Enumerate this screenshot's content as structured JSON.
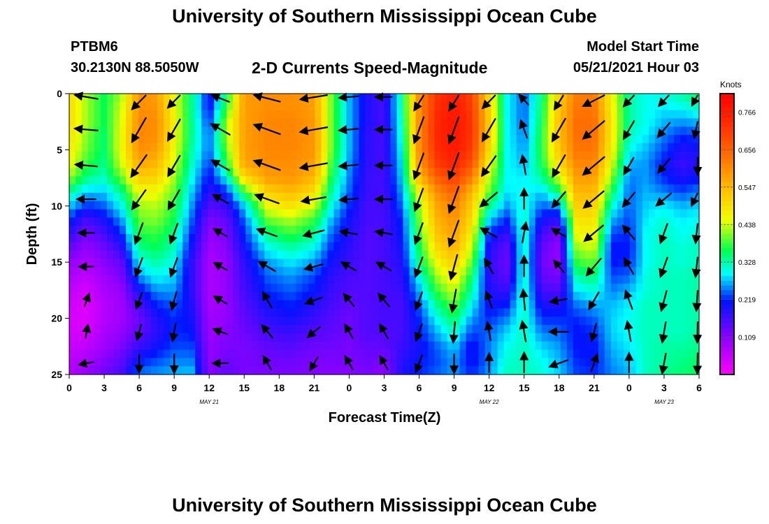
{
  "header": {
    "title": "University of Southern Mississippi Ocean Cube",
    "station_id": "PTBM6",
    "station_coords": "30.2130N  88.5050W",
    "plot_title": "2-D Currents Speed-Magnitude",
    "model_start_label": "Model Start Time",
    "model_start_value": "05/21/2021 Hour 03"
  },
  "footer": {
    "title": "University of Southern Mississippi Ocean Cube"
  },
  "chart_data": {
    "type": "heatmap",
    "xlabel": "Forecast Time(Z)",
    "ylabel": "Depth (ft)",
    "x_hours": [
      0,
      54
    ],
    "x_tick_step_hours": 3,
    "x_tick_labels": [
      "0",
      "3",
      "6",
      "9",
      "12",
      "15",
      "18",
      "21",
      "0",
      "3",
      "6",
      "9",
      "12",
      "15",
      "18",
      "21",
      "0",
      "3",
      "6"
    ],
    "date_labels": [
      {
        "text": "MAY 21",
        "hour": 12
      },
      {
        "text": "MAY 22",
        "hour": 36
      },
      {
        "text": "MAY 23",
        "hour": 51
      }
    ],
    "y_ticks": [
      0,
      5,
      10,
      15,
      20,
      25
    ],
    "ylim": [
      0,
      25
    ],
    "y_inverted": true,
    "colorbar": {
      "unit": "Knots",
      "min": 0.0,
      "max": 0.82,
      "tick_values": [
        0.766,
        0.656,
        0.547,
        0.438,
        0.328,
        0.219,
        0.109
      ],
      "tick_labels": [
        "0.766",
        "0.656",
        "0.547",
        "0.438",
        "0.328",
        "0.219",
        "0.109"
      ]
    },
    "depth_levels_ft": [
      0,
      1.2,
      2.5,
      3.7,
      5,
      6.2,
      7.5,
      8.7,
      10,
      11.2,
      12.5,
      13.7,
      15,
      16.2,
      17.5,
      18.7,
      20,
      21.2,
      22.5,
      23.7,
      25
    ],
    "vector_depths_ft": [
      0.3,
      3.2,
      6.4,
      9.4,
      12.4,
      15.4,
      18.4,
      21.2,
      24
    ],
    "speed_profiles": [
      {
        "hour": 0,
        "values": [
          0.5,
          0.5,
          0.5,
          0.49,
          0.48,
          0.46,
          0.42,
          0.34,
          0.28,
          0.22,
          0.18,
          0.14,
          0.1,
          0.08,
          0.06,
          0.05,
          0.04,
          0.04,
          0.05,
          0.06,
          0.07
        ]
      },
      {
        "hour": 1.5,
        "values": [
          0.42,
          0.42,
          0.42,
          0.41,
          0.4,
          0.38,
          0.34,
          0.28,
          0.22,
          0.16,
          0.12,
          0.1,
          0.08,
          0.06,
          0.04,
          0.03,
          0.03,
          0.04,
          0.06,
          0.08,
          0.1
        ]
      },
      {
        "hour": 3,
        "values": [
          0.36,
          0.36,
          0.36,
          0.35,
          0.35,
          0.34,
          0.32,
          0.28,
          0.24,
          0.2,
          0.16,
          0.13,
          0.11,
          0.09,
          0.08,
          0.07,
          0.07,
          0.08,
          0.09,
          0.11,
          0.13
        ]
      },
      {
        "hour": 4.5,
        "values": [
          0.42,
          0.44,
          0.45,
          0.46,
          0.46,
          0.44,
          0.4,
          0.34,
          0.3,
          0.26,
          0.22,
          0.18,
          0.14,
          0.12,
          0.1,
          0.09,
          0.09,
          0.1,
          0.12,
          0.14,
          0.16
        ]
      },
      {
        "hour": 6,
        "values": [
          0.6,
          0.6,
          0.61,
          0.61,
          0.6,
          0.57,
          0.52,
          0.46,
          0.42,
          0.4,
          0.37,
          0.34,
          0.3,
          0.26,
          0.2,
          0.16,
          0.13,
          0.14,
          0.17,
          0.21,
          0.25
        ]
      },
      {
        "hour": 7.5,
        "values": [
          0.58,
          0.59,
          0.6,
          0.6,
          0.58,
          0.55,
          0.51,
          0.46,
          0.43,
          0.41,
          0.38,
          0.36,
          0.33,
          0.3,
          0.26,
          0.22,
          0.19,
          0.18,
          0.2,
          0.23,
          0.26
        ]
      },
      {
        "hour": 9,
        "values": [
          0.46,
          0.46,
          0.47,
          0.47,
          0.46,
          0.44,
          0.42,
          0.4,
          0.38,
          0.36,
          0.34,
          0.32,
          0.3,
          0.28,
          0.26,
          0.24,
          0.22,
          0.22,
          0.23,
          0.25,
          0.27
        ]
      },
      {
        "hour": 10.5,
        "values": [
          0.34,
          0.34,
          0.34,
          0.34,
          0.33,
          0.32,
          0.3,
          0.28,
          0.26,
          0.24,
          0.22,
          0.2,
          0.18,
          0.18,
          0.18,
          0.19,
          0.2,
          0.21,
          0.23,
          0.25,
          0.28
        ]
      },
      {
        "hour": 12,
        "values": [
          0.2,
          0.2,
          0.22,
          0.24,
          0.24,
          0.22,
          0.2,
          0.18,
          0.15,
          0.12,
          0.1,
          0.09,
          0.08,
          0.08,
          0.08,
          0.08,
          0.09,
          0.09,
          0.1,
          0.1,
          0.11
        ]
      },
      {
        "hour": 13.5,
        "values": [
          0.35,
          0.38,
          0.42,
          0.42,
          0.4,
          0.37,
          0.3,
          0.22,
          0.17,
          0.14,
          0.12,
          0.11,
          0.1,
          0.1,
          0.1,
          0.1,
          0.1,
          0.11,
          0.12,
          0.13,
          0.14
        ]
      },
      {
        "hour": 15,
        "values": [
          0.58,
          0.58,
          0.58,
          0.58,
          0.58,
          0.57,
          0.5,
          0.38,
          0.28,
          0.24,
          0.22,
          0.2,
          0.18,
          0.17,
          0.16,
          0.15,
          0.14,
          0.13,
          0.12,
          0.12,
          0.12
        ]
      },
      {
        "hour": 17,
        "values": [
          0.6,
          0.6,
          0.61,
          0.61,
          0.61,
          0.6,
          0.58,
          0.52,
          0.46,
          0.4,
          0.34,
          0.3,
          0.26,
          0.24,
          0.22,
          0.2,
          0.18,
          0.16,
          0.14,
          0.13,
          0.12
        ]
      },
      {
        "hour": 19,
        "values": [
          0.6,
          0.6,
          0.61,
          0.61,
          0.61,
          0.6,
          0.59,
          0.55,
          0.49,
          0.43,
          0.38,
          0.33,
          0.29,
          0.26,
          0.24,
          0.22,
          0.2,
          0.17,
          0.15,
          0.13,
          0.12
        ]
      },
      {
        "hour": 21,
        "values": [
          0.58,
          0.58,
          0.59,
          0.59,
          0.59,
          0.58,
          0.55,
          0.5,
          0.44,
          0.38,
          0.34,
          0.3,
          0.26,
          0.23,
          0.21,
          0.19,
          0.17,
          0.15,
          0.13,
          0.12,
          0.11
        ]
      },
      {
        "hour": 22.5,
        "values": [
          0.4,
          0.4,
          0.4,
          0.4,
          0.4,
          0.38,
          0.36,
          0.33,
          0.3,
          0.27,
          0.24,
          0.22,
          0.2,
          0.18,
          0.17,
          0.16,
          0.15,
          0.14,
          0.13,
          0.12,
          0.11
        ]
      },
      {
        "hour": 24,
        "values": [
          0.27,
          0.27,
          0.27,
          0.27,
          0.27,
          0.26,
          0.25,
          0.24,
          0.22,
          0.2,
          0.19,
          0.18,
          0.17,
          0.16,
          0.15,
          0.14,
          0.13,
          0.13,
          0.12,
          0.12,
          0.11
        ]
      },
      {
        "hour": 25.5,
        "values": [
          0.19,
          0.19,
          0.19,
          0.18,
          0.18,
          0.18,
          0.17,
          0.17,
          0.16,
          0.16,
          0.15,
          0.15,
          0.15,
          0.15,
          0.15,
          0.15,
          0.15,
          0.15,
          0.14,
          0.13,
          0.12
        ]
      },
      {
        "hour": 27,
        "values": [
          0.16,
          0.16,
          0.16,
          0.16,
          0.16,
          0.16,
          0.16,
          0.16,
          0.16,
          0.16,
          0.16,
          0.16,
          0.16,
          0.16,
          0.16,
          0.16,
          0.16,
          0.15,
          0.14,
          0.12,
          0.1
        ]
      },
      {
        "hour": 28.5,
        "values": [
          0.33,
          0.33,
          0.32,
          0.31,
          0.3,
          0.29,
          0.28,
          0.26,
          0.24,
          0.22,
          0.21,
          0.2,
          0.19,
          0.18,
          0.17,
          0.16,
          0.16,
          0.16,
          0.17,
          0.18,
          0.19
        ]
      },
      {
        "hour": 30,
        "values": [
          0.6,
          0.6,
          0.6,
          0.6,
          0.6,
          0.58,
          0.54,
          0.47,
          0.42,
          0.4,
          0.38,
          0.36,
          0.34,
          0.3,
          0.27,
          0.24,
          0.22,
          0.21,
          0.2,
          0.21,
          0.22
        ]
      },
      {
        "hour": 31.5,
        "values": [
          0.72,
          0.73,
          0.74,
          0.74,
          0.73,
          0.71,
          0.66,
          0.6,
          0.57,
          0.55,
          0.53,
          0.5,
          0.46,
          0.42,
          0.38,
          0.34,
          0.3,
          0.27,
          0.24,
          0.23,
          0.24
        ]
      },
      {
        "hour": 33,
        "values": [
          0.76,
          0.77,
          0.78,
          0.78,
          0.77,
          0.75,
          0.71,
          0.66,
          0.62,
          0.6,
          0.58,
          0.56,
          0.52,
          0.48,
          0.44,
          0.4,
          0.36,
          0.32,
          0.28,
          0.26,
          0.26
        ]
      },
      {
        "hour": 34.5,
        "values": [
          0.7,
          0.71,
          0.72,
          0.72,
          0.71,
          0.68,
          0.62,
          0.55,
          0.52,
          0.5,
          0.47,
          0.44,
          0.4,
          0.36,
          0.33,
          0.3,
          0.26,
          0.23,
          0.2,
          0.2,
          0.22
        ]
      },
      {
        "hour": 36,
        "values": [
          0.5,
          0.51,
          0.52,
          0.52,
          0.5,
          0.47,
          0.43,
          0.4,
          0.34,
          0.28,
          0.22,
          0.19,
          0.18,
          0.18,
          0.19,
          0.2,
          0.22,
          0.24,
          0.25,
          0.25,
          0.26
        ]
      },
      {
        "hour": 37.5,
        "values": [
          0.3,
          0.3,
          0.3,
          0.3,
          0.3,
          0.3,
          0.3,
          0.29,
          0.26,
          0.22,
          0.17,
          0.14,
          0.13,
          0.14,
          0.17,
          0.21,
          0.25,
          0.28,
          0.3,
          0.31,
          0.32
        ]
      },
      {
        "hour": 39,
        "values": [
          0.24,
          0.24,
          0.24,
          0.25,
          0.26,
          0.27,
          0.29,
          0.3,
          0.31,
          0.32,
          0.32,
          0.32,
          0.32,
          0.32,
          0.32,
          0.32,
          0.32,
          0.32,
          0.32,
          0.32,
          0.32
        ]
      },
      {
        "hour": 40.5,
        "values": [
          0.34,
          0.35,
          0.36,
          0.37,
          0.37,
          0.36,
          0.33,
          0.28,
          0.24,
          0.2,
          0.16,
          0.14,
          0.13,
          0.14,
          0.16,
          0.19,
          0.22,
          0.25,
          0.28,
          0.3,
          0.31
        ]
      },
      {
        "hour": 42,
        "values": [
          0.52,
          0.53,
          0.54,
          0.54,
          0.53,
          0.5,
          0.44,
          0.36,
          0.26,
          0.18,
          0.12,
          0.1,
          0.1,
          0.12,
          0.15,
          0.19,
          0.22,
          0.24,
          0.26,
          0.27,
          0.28
        ]
      },
      {
        "hour": 43.5,
        "values": [
          0.62,
          0.63,
          0.64,
          0.64,
          0.63,
          0.61,
          0.58,
          0.55,
          0.52,
          0.49,
          0.46,
          0.42,
          0.38,
          0.33,
          0.29,
          0.25,
          0.22,
          0.21,
          0.21,
          0.22,
          0.23
        ]
      },
      {
        "hour": 45,
        "values": [
          0.62,
          0.63,
          0.64,
          0.64,
          0.63,
          0.61,
          0.58,
          0.55,
          0.52,
          0.49,
          0.47,
          0.44,
          0.4,
          0.35,
          0.31,
          0.27,
          0.24,
          0.22,
          0.21,
          0.21,
          0.22
        ]
      },
      {
        "hour": 46.5,
        "values": [
          0.46,
          0.47,
          0.48,
          0.48,
          0.47,
          0.45,
          0.41,
          0.36,
          0.31,
          0.27,
          0.23,
          0.21,
          0.21,
          0.23,
          0.25,
          0.27,
          0.28,
          0.28,
          0.27,
          0.26,
          0.25
        ]
      },
      {
        "hour": 48,
        "values": [
          0.33,
          0.33,
          0.33,
          0.32,
          0.3,
          0.27,
          0.25,
          0.24,
          0.24,
          0.23,
          0.22,
          0.21,
          0.22,
          0.24,
          0.27,
          0.29,
          0.3,
          0.3,
          0.29,
          0.28,
          0.27
        ]
      },
      {
        "hour": 49.5,
        "values": [
          0.3,
          0.3,
          0.3,
          0.29,
          0.27,
          0.26,
          0.26,
          0.27,
          0.28,
          0.29,
          0.3,
          0.3,
          0.3,
          0.31,
          0.31,
          0.32,
          0.32,
          0.32,
          0.32,
          0.32,
          0.32
        ]
      },
      {
        "hour": 51,
        "values": [
          0.31,
          0.29,
          0.27,
          0.25,
          0.23,
          0.21,
          0.22,
          0.25,
          0.29,
          0.31,
          0.32,
          0.32,
          0.32,
          0.32,
          0.32,
          0.32,
          0.32,
          0.32,
          0.33,
          0.33,
          0.34
        ]
      },
      {
        "hour": 52.5,
        "values": [
          0.33,
          0.3,
          0.26,
          0.22,
          0.19,
          0.17,
          0.19,
          0.23,
          0.27,
          0.29,
          0.3,
          0.31,
          0.31,
          0.32,
          0.32,
          0.32,
          0.32,
          0.32,
          0.33,
          0.34,
          0.35
        ]
      },
      {
        "hour": 54,
        "values": [
          0.36,
          0.32,
          0.27,
          0.23,
          0.2,
          0.19,
          0.21,
          0.25,
          0.28,
          0.3,
          0.31,
          0.32,
          0.32,
          0.33,
          0.33,
          0.33,
          0.33,
          0.33,
          0.34,
          0.35,
          0.36
        ]
      }
    ],
    "vector_columns": [
      {
        "hour": 1.5,
        "dirs": [
          280,
          275,
          275,
          270,
          270,
          270,
          20,
          10,
          260
        ]
      },
      {
        "hour": 6,
        "dirs": [
          210,
          210,
          215,
          215,
          200,
          200,
          200,
          195,
          180
        ]
      },
      {
        "hour": 9,
        "dirs": [
          210,
          210,
          210,
          210,
          200,
          200,
          195,
          190,
          180
        ]
      },
      {
        "hour": 13,
        "dirs": [
          300,
          300,
          300,
          300,
          300,
          300,
          300,
          290,
          270
        ]
      },
      {
        "hour": 17,
        "dirs": [
          290,
          290,
          290,
          290,
          290,
          300,
          330,
          320,
          330
        ]
      },
      {
        "hour": 21,
        "dirs": [
          260,
          260,
          260,
          260,
          255,
          255,
          250,
          230,
          210
        ]
      },
      {
        "hour": 24,
        "dirs": [
          265,
          265,
          265,
          265,
          280,
          300,
          320,
          330,
          330
        ]
      },
      {
        "hour": 27,
        "dirs": [
          270,
          270,
          270,
          270,
          280,
          300,
          320,
          330,
          330
        ]
      },
      {
        "hour": 30,
        "dirs": [
          200,
          200,
          200,
          200,
          200,
          200,
          200,
          200,
          200
        ]
      },
      {
        "hour": 33,
        "dirs": [
          200,
          200,
          200,
          200,
          200,
          195,
          190,
          185,
          180
        ]
      },
      {
        "hour": 36,
        "dirs": [
          210,
          210,
          215,
          230,
          300,
          330,
          340,
          350,
          0
        ]
      },
      {
        "hour": 39,
        "dirs": [
          330,
          340,
          350,
          0,
          10,
          0,
          355,
          350,
          0
        ]
      },
      {
        "hour": 42,
        "dirs": [
          200,
          210,
          210,
          220,
          300,
          320,
          260,
          270,
          250
        ]
      },
      {
        "hour": 45,
        "dirs": [
          230,
          230,
          230,
          230,
          230,
          220,
          210,
          195,
          20
        ]
      },
      {
        "hour": 48,
        "dirs": [
          210,
          210,
          210,
          220,
          320,
          330,
          340,
          350,
          0
        ]
      },
      {
        "hour": 51,
        "dirs": [
          210,
          220,
          220,
          230,
          200,
          200,
          195,
          190,
          190
        ]
      },
      {
        "hour": 54,
        "dirs": [
          220,
          210,
          190,
          230,
          200,
          200,
          195,
          190,
          190
        ]
      }
    ],
    "vector_magnitudes": "scaled by local speed"
  }
}
